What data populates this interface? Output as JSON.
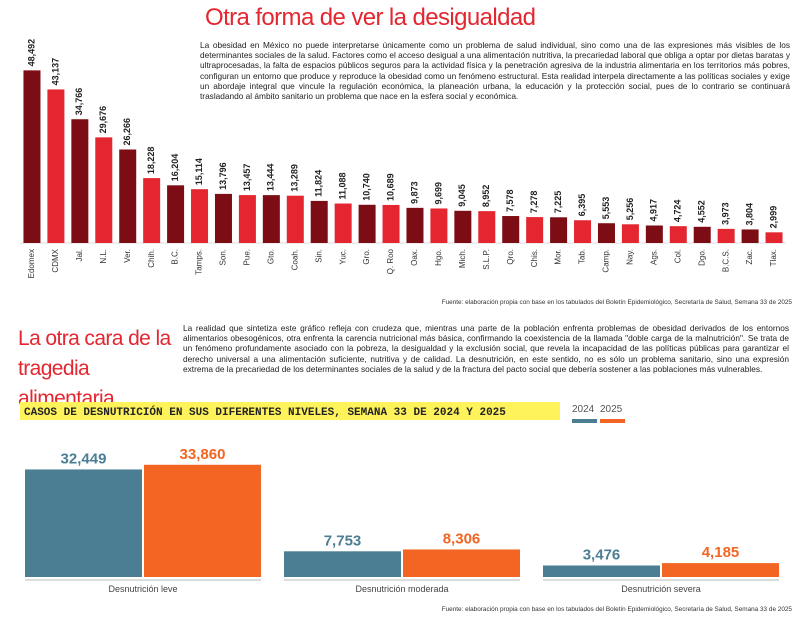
{
  "chart_data": [
    {
      "type": "bar",
      "title": "Otra forma de ver la desigualdad",
      "text": "La obesidad en México no puede interpretarse únicamente como un problema de salud individual, sino como una de las expresiones más visibles de los determinantes sociales de la salud. Factores como el acceso desigual a una alimentación nutritiva, la precariedad laboral que obliga a optar por dietas baratas y ultraprocesadas, la falta de espacios públicos seguros para la actividad física y la penetración agresiva de la industria alimentaria en los territorios más pobres, configuran un entorno que produce y reproduce la obesidad como un fenómeno estructural. Esta realidad interpela directamente a las políticas sociales y exige un abordaje integral que vincule la regulación económica, la planeación urbana, la educación y la protección social, pues de lo contrario se continuará trasladando al ámbito sanitario un problema que nace en la esfera social y económica.",
      "source": "Fuente: elaboración propia con base en los tabulados del Boletín Epidemiológico, Secretaría de Salud, Semana 33 de 2025",
      "categories": [
        "Edomex",
        "CDMX",
        "Jal.",
        "N.L.",
        "Ver.",
        "Chih.",
        "B.C.",
        "Tamps.",
        "Son.",
        "Pue.",
        "Gto.",
        "Coah.",
        "Sin.",
        "Yuc.",
        "Gro.",
        "Q. Roo",
        "Oax.",
        "Hgo.",
        "Mich.",
        "S.L.P.",
        "Qro.",
        "Chis.",
        "Mor.",
        "Tab.",
        "Camp.",
        "Nay.",
        "Ags.",
        "Col.",
        "Dgo.",
        "B.C.S.",
        "Zac.",
        "Tlax."
      ],
      "values": [
        48492,
        43137,
        34766,
        29676,
        26266,
        18228,
        16204,
        15114,
        13796,
        13457,
        13444,
        13289,
        11824,
        11088,
        10740,
        10689,
        9873,
        9699,
        9045,
        8952,
        7578,
        7278,
        7225,
        6395,
        5553,
        5256,
        4917,
        4724,
        4552,
        3973,
        3804,
        2999
      ],
      "value_labels": [
        "48,492",
        "43,137",
        "34,766",
        "29,676",
        "26,266",
        "18,228",
        "16,204",
        "15,114",
        "13,796",
        "13,457",
        "13,444",
        "13,289",
        "11,824",
        "11,088",
        "10,740",
        "10,689",
        "9,873",
        "9,699",
        "9,045",
        "8,952",
        "7,578",
        "7,278",
        "7,225",
        "6,395",
        "5,553",
        "5,256",
        "4,917",
        "4,724",
        "4,552",
        "3,973",
        "3,804",
        "2,999"
      ],
      "colors": [
        "#7d0d14",
        "#e32630"
      ],
      "ylim": [
        0,
        50000
      ]
    },
    {
      "type": "grouped_bar",
      "title": "La otra cara de la tragedia alimentaria",
      "text": "La realidad que sintetiza este gráfico refleja con crudeza que, mientras una parte de la población enfrenta problemas de obesidad derivados de los entornos alimentarios obesogénicos, otra enfrenta la carencia nutricional más básica, confirmando la coexistencia de la llamada \"doble carga de la malnutrición\". Se trata de un fenómeno profundamente asociado con la pobreza, la desigualdad y la exclusión social, que revela la incapacidad de las políticas públicas para garantizar el derecho universal a una alimentación suficiente, nutritiva y de calidad. La desnutrición, en este sentido, no es sólo un problema sanitario, sino una expresión extrema de la precariedad de los determinantes sociales de la salud y de la fractura del pacto social que debería sostener a las poblaciones más vulnerables.",
      "subtitle": "CASOS DE DESNUTRICIÓN EN SUS DIFERENTES NIVELES, SEMANA 33 DE 2024 Y 2025",
      "source": "Fuente: elaboración propia con base en los tabulados del Boletín Epidemiológico, Secretaría de Salud, Semana 33 de 2025",
      "categories": [
        "Desnutrición leve",
        "Desnutrición moderada",
        "Desnutrición severa"
      ],
      "series": [
        {
          "name": "2024",
          "color": "#4b7e93",
          "values": [
            32449,
            7753,
            3476
          ],
          "value_labels": [
            "32,449",
            "7,753",
            "3,476"
          ]
        },
        {
          "name": "2025",
          "color": "#f26522",
          "values": [
            33860,
            8306,
            4185
          ],
          "value_labels": [
            "33,860",
            "8,306",
            "4,185"
          ]
        }
      ],
      "ylim": [
        0,
        35000
      ]
    }
  ]
}
